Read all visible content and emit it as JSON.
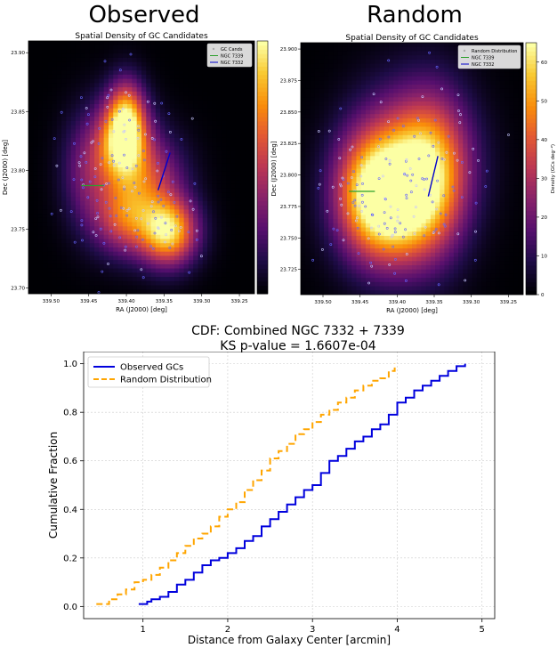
{
  "figure": {
    "left_title": "Observed",
    "right_title": "Random"
  },
  "chart_data": [
    {
      "type": "heatmap",
      "title": "Spatial Density of GC Candidates",
      "xlabel": "RA (J2000) [deg]",
      "ylabel": "Dec (J2000) [deg]",
      "xlim": [
        339.53,
        339.23
      ],
      "ylim": [
        23.695,
        23.91
      ],
      "xticks": [
        "339.50",
        "339.45",
        "339.40",
        "339.35",
        "339.30",
        "339.25"
      ],
      "xtick_values": [
        339.5,
        339.45,
        339.4,
        339.35,
        339.3,
        339.25
      ],
      "yticks": [
        "23.70",
        "23.75",
        "23.80",
        "23.85",
        "23.90"
      ],
      "ytick_values": [
        23.7,
        23.75,
        23.8,
        23.85,
        23.9
      ],
      "legend": [
        "GC Cands",
        "NGC 7339",
        "NGC 7332"
      ],
      "legend_placement": "top-right",
      "colormap": "inferno",
      "line_ngc7339": {
        "color": "#2ca02c",
        "x": [
          339.46,
          339.43
        ],
        "y": [
          23.787,
          23.787
        ]
      },
      "line_ngc7332": {
        "color": "#0000cc",
        "x": [
          339.358,
          339.342
        ],
        "y": [
          23.783,
          23.815
        ]
      },
      "density_peaks": [
        {
          "ra": 339.405,
          "dec": 23.822,
          "sigma_ra": 0.022,
          "sigma_dec": 0.024,
          "amp": 1.0
        },
        {
          "ra": 339.4,
          "dec": 23.845,
          "sigma_ra": 0.015,
          "sigma_dec": 0.02,
          "amp": 0.6
        },
        {
          "ra": 339.345,
          "dec": 23.748,
          "sigma_ra": 0.024,
          "sigma_dec": 0.018,
          "amp": 0.95
        },
        {
          "ra": 339.4,
          "dec": 23.76,
          "sigma_ra": 0.028,
          "sigma_dec": 0.02,
          "amp": 0.55
        },
        {
          "ra": 339.45,
          "dec": 23.8,
          "sigma_ra": 0.022,
          "sigma_dec": 0.03,
          "amp": 0.28
        },
        {
          "ra": 339.37,
          "dec": 23.79,
          "sigma_ra": 0.03,
          "sigma_dec": 0.025,
          "amp": 0.42
        }
      ]
    },
    {
      "type": "heatmap",
      "title": "Spatial Density of GC Candidates",
      "xlabel": "RA (J2000) [deg]",
      "ylabel": "Dec (J2000) [deg]",
      "xlim": [
        339.53,
        339.23
      ],
      "ylim": [
        23.705,
        23.905
      ],
      "xticks": [
        "339.50",
        "339.45",
        "339.40",
        "339.35",
        "339.30",
        "339.25"
      ],
      "xtick_values": [
        339.5,
        339.45,
        339.4,
        339.35,
        339.3,
        339.25
      ],
      "yticks": [
        "23.725",
        "23.750",
        "23.775",
        "23.800",
        "23.825",
        "23.850",
        "23.875",
        "23.900"
      ],
      "ytick_values": [
        23.725,
        23.75,
        23.775,
        23.8,
        23.825,
        23.85,
        23.875,
        23.9
      ],
      "legend": [
        "Random Distribution",
        "NGC 7339",
        "NGC 7332"
      ],
      "legend_placement": "top-right",
      "colormap": "inferno",
      "colorbar_label": "Density (GCs deg⁻²)",
      "colorbar_ticks": [
        0,
        10,
        20,
        30,
        40,
        50,
        60
      ],
      "colorbar_range": [
        0,
        65
      ],
      "line_ngc7339": {
        "color": "#2ca02c",
        "x": [
          339.465,
          339.43
        ],
        "y": [
          23.787,
          23.787
        ]
      },
      "line_ngc7332": {
        "color": "#0000cc",
        "x": [
          339.358,
          339.345
        ],
        "y": [
          23.783,
          23.815
        ]
      },
      "density_peaks": [
        {
          "ra": 339.405,
          "dec": 23.775,
          "sigma_ra": 0.04,
          "sigma_dec": 0.03,
          "amp": 1.0
        },
        {
          "ra": 339.38,
          "dec": 23.81,
          "sigma_ra": 0.045,
          "sigma_dec": 0.035,
          "amp": 0.7
        },
        {
          "ra": 339.44,
          "dec": 23.79,
          "sigma_ra": 0.03,
          "sigma_dec": 0.03,
          "amp": 0.45
        },
        {
          "ra": 339.35,
          "dec": 23.8,
          "sigma_ra": 0.03,
          "sigma_dec": 0.04,
          "amp": 0.4
        }
      ]
    },
    {
      "type": "line",
      "title": "CDF: Combined NGC 7332 + 7339",
      "subtitle": "KS p-value = 1.6607e-04",
      "xlabel": "Distance from Galaxy Center [arcmin]",
      "ylabel": "Cumulative Fraction",
      "xlim": [
        0.3,
        5.15
      ],
      "ylim": [
        -0.05,
        1.05
      ],
      "xticks": [
        1,
        2,
        3,
        4,
        5
      ],
      "yticks": [
        "0.0",
        "0.2",
        "0.4",
        "0.6",
        "0.8",
        "1.0"
      ],
      "ytick_values": [
        0,
        0.2,
        0.4,
        0.6,
        0.8,
        1.0
      ],
      "grid": true,
      "legend_placement": "top-left",
      "series": [
        {
          "name": "Observed GCs",
          "color": "#0000dd",
          "style": "solid",
          "x": [
            0.95,
            1.05,
            1.1,
            1.2,
            1.3,
            1.4,
            1.5,
            1.6,
            1.7,
            1.8,
            1.9,
            2.0,
            2.1,
            2.2,
            2.3,
            2.4,
            2.5,
            2.6,
            2.7,
            2.8,
            2.9,
            3.0,
            3.1,
            3.2,
            3.3,
            3.4,
            3.5,
            3.6,
            3.7,
            3.8,
            3.9,
            4.0,
            4.1,
            4.2,
            4.3,
            4.4,
            4.5,
            4.6,
            4.7,
            4.8
          ],
          "y": [
            0.01,
            0.02,
            0.03,
            0.04,
            0.06,
            0.09,
            0.11,
            0.14,
            0.17,
            0.19,
            0.2,
            0.22,
            0.24,
            0.27,
            0.29,
            0.33,
            0.36,
            0.39,
            0.42,
            0.45,
            0.48,
            0.5,
            0.55,
            0.6,
            0.62,
            0.65,
            0.68,
            0.7,
            0.73,
            0.75,
            0.79,
            0.84,
            0.86,
            0.89,
            0.91,
            0.93,
            0.95,
            0.97,
            0.99,
            1.0
          ]
        },
        {
          "name": "Random Distribution",
          "color": "#ffa500",
          "style": "dashed",
          "x": [
            0.45,
            0.6,
            0.7,
            0.8,
            0.9,
            1.0,
            1.1,
            1.2,
            1.3,
            1.4,
            1.5,
            1.6,
            1.7,
            1.8,
            1.9,
            2.0,
            2.1,
            2.2,
            2.3,
            2.4,
            2.5,
            2.6,
            2.7,
            2.8,
            2.9,
            3.0,
            3.1,
            3.2,
            3.3,
            3.4,
            3.5,
            3.6,
            3.7,
            3.8,
            3.9,
            3.97
          ],
          "y": [
            0.01,
            0.03,
            0.05,
            0.07,
            0.1,
            0.11,
            0.13,
            0.16,
            0.19,
            0.22,
            0.25,
            0.28,
            0.3,
            0.33,
            0.37,
            0.4,
            0.43,
            0.48,
            0.52,
            0.56,
            0.61,
            0.64,
            0.67,
            0.71,
            0.73,
            0.76,
            0.79,
            0.81,
            0.84,
            0.86,
            0.89,
            0.91,
            0.93,
            0.94,
            0.97,
            1.0
          ]
        }
      ]
    }
  ]
}
